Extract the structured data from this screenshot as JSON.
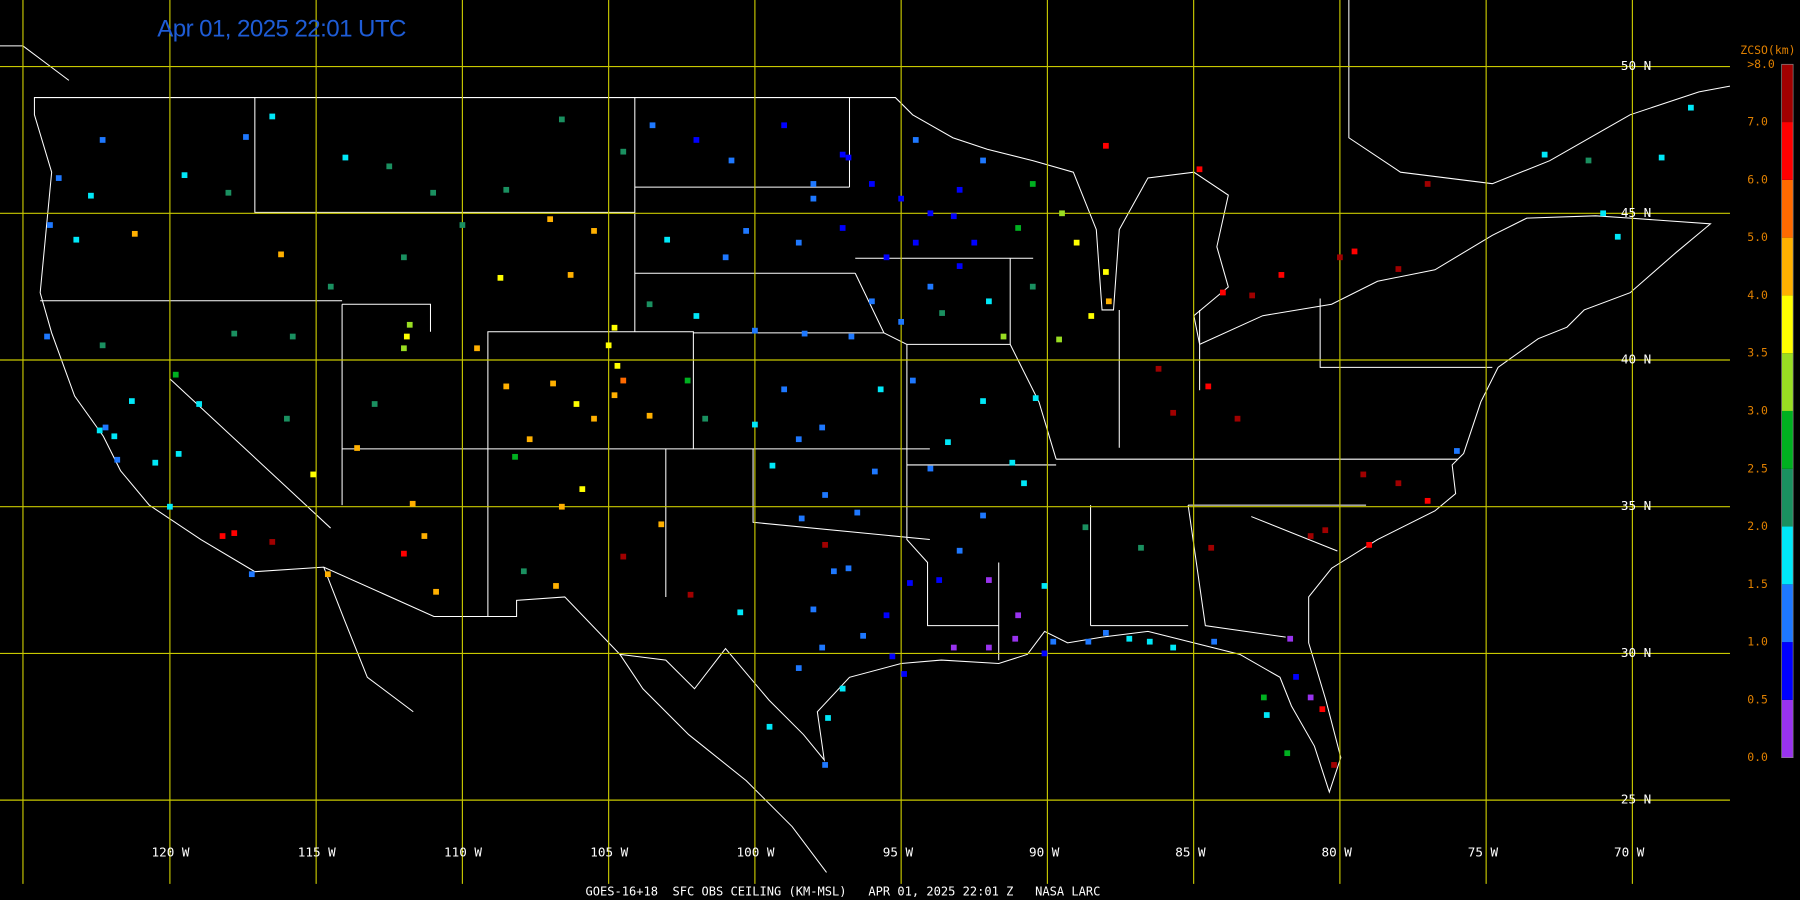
{
  "title": "Apr 01, 2025 22:01 UTC",
  "footer": "GOES-16+18  SFC OBS CEILING (KM-MSL)   APR 01, 2025 22:01 Z   NASA LARC",
  "map": {
    "xticks": [
      {
        "value": -120,
        "label": "120 W"
      },
      {
        "value": -115,
        "label": "115 W"
      },
      {
        "value": -110,
        "label": "110 W"
      },
      {
        "value": -105,
        "label": "105 W"
      },
      {
        "value": -100,
        "label": "100 W"
      },
      {
        "value": -95,
        "label": "95 W"
      },
      {
        "value": -90,
        "label": "90 W"
      },
      {
        "value": -85,
        "label": "85 W"
      },
      {
        "value": -80,
        "label": "80 W"
      },
      {
        "value": -75,
        "label": "75 W"
      },
      {
        "value": -70,
        "label": "70 W"
      }
    ],
    "yticks": [
      {
        "value": 50,
        "label": "50 N"
      },
      {
        "value": 45,
        "label": "45 N"
      },
      {
        "value": 40,
        "label": "40 N"
      },
      {
        "value": 35,
        "label": "35 N"
      },
      {
        "value": 30,
        "label": "30 N"
      },
      {
        "value": 25,
        "label": "25 N"
      }
    ]
  },
  "legend": {
    "title": "ZCSO(km)",
    "ticks": [
      {
        "value": 0,
        "label": "0.0"
      },
      0.5,
      {
        "value": 1,
        "label": "1.0"
      },
      1.5,
      {
        "value": 2,
        "label": "2.0"
      },
      2.5,
      {
        "value": 3,
        "label": "3.0"
      },
      3.5,
      {
        "value": 4,
        "label": "4.0"
      },
      {
        "value": 5,
        "label": "5.0"
      },
      {
        "value": 6,
        "label": "6.0"
      },
      {
        "value": 7,
        "label": "7.0"
      },
      {
        "value": 8,
        "label": ">8.0"
      }
    ],
    "colors": [
      "#9933ee",
      "#0000ff",
      "#1e78ff",
      "#00e8f8",
      "#1a9060",
      "#00b020",
      "#99dd22",
      "#ffff00",
      "#ffb000",
      "#ff6a00",
      "#ff0000",
      "#a00000"
    ]
  },
  "stations": [
    [
      -96,
      46,
      0.8
    ],
    [
      -95,
      45.5,
      0.9
    ],
    [
      -94,
      45,
      0.7
    ],
    [
      -93.2,
      44.9,
      0.8
    ],
    [
      -92.5,
      44,
      0.9
    ],
    [
      -94.5,
      44,
      0.6
    ],
    [
      -95.5,
      43.5,
      0.9
    ],
    [
      -93,
      43.2,
      0.85
    ],
    [
      -94,
      42.5,
      1.2
    ],
    [
      -92,
      42,
      1.8
    ],
    [
      -93.6,
      41.6,
      2.2
    ],
    [
      -95,
      41.3,
      1.3
    ],
    [
      -96,
      42,
      1.1
    ],
    [
      -97,
      44.5,
      0.8
    ],
    [
      -98,
      45.5,
      1.2
    ],
    [
      -97,
      47,
      0.6
    ],
    [
      -96.8,
      46.9,
      0.9
    ],
    [
      -94.5,
      47.5,
      1.1
    ],
    [
      -92.2,
      46.8,
      1.4
    ],
    [
      -90.5,
      46,
      2.8
    ],
    [
      -89.5,
      45,
      3.2
    ],
    [
      -89,
      44,
      3.7
    ],
    [
      -88,
      43,
      3.8
    ],
    [
      -87.9,
      42,
      4.1
    ],
    [
      -88.5,
      41.5,
      3.9
    ],
    [
      -89.6,
      40.7,
      3.1
    ],
    [
      -90.5,
      42.5,
      2.4
    ],
    [
      -91.5,
      40.8,
      3.3
    ],
    [
      -91,
      44.5,
      2.6
    ],
    [
      -93,
      45.8,
      0.7
    ],
    [
      -100.8,
      46.8,
      1.2
    ],
    [
      -102,
      47.5,
      0.9
    ],
    [
      -103.5,
      48,
      1.3
    ],
    [
      -99,
      48,
      0.9
    ],
    [
      -98,
      46,
      1.1
    ],
    [
      -100.3,
      44.4,
      1.4
    ],
    [
      -103,
      44.1,
      1.7
    ],
    [
      -98.5,
      44,
      1.1
    ],
    [
      -101,
      43.5,
      1.3
    ],
    [
      -100,
      41,
      1.4
    ],
    [
      -98.3,
      40.9,
      1.2
    ],
    [
      -96.7,
      40.8,
      1.1
    ],
    [
      -102,
      41.5,
      1.6
    ],
    [
      -103.6,
      41.9,
      2.2
    ],
    [
      -99,
      39,
      1.3
    ],
    [
      -97.7,
      37.7,
      1.4
    ],
    [
      -95.7,
      39,
      1.5
    ],
    [
      -100,
      37.8,
      1.5
    ],
    [
      -101.7,
      38,
      2.1
    ],
    [
      -98.5,
      37.3,
      1.3
    ],
    [
      -94.6,
      39.3,
      1.0
    ],
    [
      -92.2,
      38.6,
      1.5
    ],
    [
      -90.4,
      38.7,
      1.8
    ],
    [
      -93.4,
      37.2,
      1.6
    ],
    [
      -94,
      36.3,
      1.2
    ],
    [
      -92.2,
      34.7,
      1.3
    ],
    [
      -90.8,
      35.8,
      1.7
    ],
    [
      -93,
      33.5,
      1.0
    ],
    [
      -91.2,
      36.5,
      1.5
    ],
    [
      -97.6,
      35.4,
      1.2
    ],
    [
      -95.9,
      36.2,
      1.1
    ],
    [
      -98.4,
      34.6,
      1.4
    ],
    [
      -99.4,
      36.4,
      1.8
    ],
    [
      -96.5,
      34.8,
      1.0
    ],
    [
      -96.8,
      32.9,
      1.0
    ],
    [
      -97.3,
      32.8,
      1.1
    ],
    [
      -95.3,
      29.9,
      0.8
    ],
    [
      -94.9,
      29.3,
      0.9
    ],
    [
      -97.7,
      30.2,
      1.0
    ],
    [
      -98.5,
      29.5,
      1.4
    ],
    [
      -97.5,
      27.8,
      1.7
    ],
    [
      -97.6,
      26.2,
      1.1
    ],
    [
      -99.5,
      27.5,
      1.6
    ],
    [
      -102.2,
      32,
      7.2
    ],
    [
      -100.5,
      31.4,
      1.5
    ],
    [
      -94.7,
      32.4,
      0.9
    ],
    [
      -96.3,
      30.6,
      1.0
    ],
    [
      -95.5,
      31.3,
      0.7
    ],
    [
      -98,
      31.5,
      1.3
    ],
    [
      -97,
      28.8,
      1.6
    ],
    [
      -97.6,
      33.7,
      7.5
    ],
    [
      -93.2,
      30.2,
      0.4
    ],
    [
      -92,
      30.2,
      0.3
    ],
    [
      -91.1,
      30.5,
      0.4
    ],
    [
      -90.1,
      30,
      0.7
    ],
    [
      -93.7,
      32.5,
      0.8
    ],
    [
      -92,
      32.5,
      0.4
    ],
    [
      -91,
      31.3,
      0.3
    ],
    [
      -89.8,
      30.4,
      1.3
    ],
    [
      -90.1,
      32.3,
      1.6
    ],
    [
      -88.6,
      30.4,
      1.4
    ],
    [
      -88,
      30.7,
      1.2
    ],
    [
      -87.2,
      30.5,
      1.5
    ],
    [
      -86.5,
      30.4,
      1.6
    ],
    [
      -85.7,
      30.2,
      1.8
    ],
    [
      -84.3,
      30.4,
      1.4
    ],
    [
      -86.8,
      33.6,
      2.3
    ],
    [
      -88.7,
      34.3,
      2.0
    ],
    [
      -81.7,
      30.5,
      0.4
    ],
    [
      -81.5,
      29.2,
      0.6
    ],
    [
      -81,
      28.5,
      0.4
    ],
    [
      -82.5,
      27.9,
      1.9
    ],
    [
      -82.6,
      28.5,
      2.7
    ],
    [
      -80.2,
      26.2,
      7.5
    ],
    [
      -81.8,
      26.6,
      2.6
    ],
    [
      -80.6,
      28.1,
      6.5
    ],
    [
      -84.4,
      33.6,
      7.5
    ],
    [
      -81,
      34,
      7.4
    ],
    [
      -80.5,
      34.2,
      7.6
    ],
    [
      -79,
      33.7,
      6.8
    ],
    [
      -78,
      35.8,
      7.3
    ],
    [
      -77,
      35.2,
      6.6
    ],
    [
      -76,
      36.9,
      1.3
    ],
    [
      -79.2,
      36.1,
      7.6
    ],
    [
      -83.5,
      38,
      7.2
    ],
    [
      -85.7,
      38.2,
      7.5
    ],
    [
      -86.2,
      39.7,
      7.4
    ],
    [
      -84.5,
      39.1,
      6.9
    ],
    [
      -84,
      42.3,
      6.7
    ],
    [
      -83,
      42.2,
      7.4
    ],
    [
      -82,
      42.9,
      6.5
    ],
    [
      -80,
      43.5,
      7.6
    ],
    [
      -79.5,
      43.7,
      6.7
    ],
    [
      -78,
      43.1,
      7.1
    ],
    [
      -77,
      46,
      7.3
    ],
    [
      -84.8,
      46.5,
      6.2
    ],
    [
      -88,
      47.3,
      6.6
    ],
    [
      -71,
      45,
      1.6
    ],
    [
      -70.5,
      44.2,
      1.5
    ],
    [
      -69,
      46.9,
      1.6
    ],
    [
      -68,
      48.6,
      1.5
    ],
    [
      -73,
      47,
      1.7
    ],
    [
      -71.5,
      46.8,
      2.3
    ],
    [
      -104.7,
      39.8,
      3.6
    ],
    [
      -104.8,
      38.8,
      4.6
    ],
    [
      -105,
      40.5,
      3.6
    ],
    [
      -104.5,
      39.3,
      5.0
    ],
    [
      -106.9,
      39.2,
      4.1
    ],
    [
      -107.7,
      37.3,
      4.4
    ],
    [
      -108.5,
      39.1,
      4.5
    ],
    [
      -106.1,
      38.5,
      3.8
    ],
    [
      -103.6,
      38.1,
      4.3
    ],
    [
      -102.3,
      39.3,
      2.7
    ],
    [
      -105.5,
      38,
      4.0
    ],
    [
      -106.6,
      35,
      4.3
    ],
    [
      -105.9,
      35.6,
      3.7
    ],
    [
      -103.2,
      34.4,
      4.1
    ],
    [
      -104.5,
      33.3,
      7.2
    ],
    [
      -108.2,
      36.7,
      2.6
    ],
    [
      -106.8,
      32.3,
      4.0
    ],
    [
      -107.9,
      32.8,
      2.4
    ],
    [
      -111.7,
      35.1,
      4.7
    ],
    [
      -112,
      33.4,
      6.8
    ],
    [
      -110.9,
      32.1,
      4.1
    ],
    [
      -111.3,
      34,
      4.5
    ],
    [
      -114.6,
      32.7,
      4.2
    ],
    [
      -113.6,
      37,
      4.5
    ],
    [
      -111.9,
      40.8,
      3.6
    ],
    [
      -111.8,
      41.2,
      3.0
    ],
    [
      -112,
      40.4,
      3.4
    ],
    [
      -113,
      38.5,
      2.4
    ],
    [
      -109.5,
      40.4,
      4.1
    ],
    [
      -115.1,
      36.1,
      3.7
    ],
    [
      -119.8,
      39.5,
      2.7
    ],
    [
      -117.8,
      40.9,
      2.4
    ],
    [
      -115.8,
      40.8,
      2.3
    ],
    [
      -116,
      38,
      2.0
    ],
    [
      -122.4,
      37.6,
      1.8
    ],
    [
      -122.2,
      37.7,
      1.4
    ],
    [
      -121.9,
      37.4,
      1.5
    ],
    [
      -121.3,
      38.6,
      1.8
    ],
    [
      -120.5,
      36.5,
      1.6
    ],
    [
      -119.7,
      36.8,
      1.9
    ],
    [
      -118.2,
      34,
      6.3
    ],
    [
      -117.2,
      32.7,
      1.1
    ],
    [
      -116.5,
      33.8,
      7.0
    ],
    [
      -117.8,
      34.1,
      6.6
    ],
    [
      -120,
      35,
      1.9
    ],
    [
      -121.8,
      36.6,
      1.2
    ],
    [
      -124.2,
      40.8,
      1.1
    ],
    [
      -122.3,
      40.5,
      2.3
    ],
    [
      -119,
      38.5,
      1.7
    ],
    [
      -122.3,
      47.5,
      1.3
    ],
    [
      -122.7,
      45.6,
      1.6
    ],
    [
      -123.8,
      46.2,
      1.4
    ],
    [
      -124.1,
      44.6,
      1.2
    ],
    [
      -123.2,
      44.1,
      1.7
    ],
    [
      -117.4,
      47.6,
      1.3
    ],
    [
      -119.5,
      46.3,
      1.6
    ],
    [
      -121.2,
      44.3,
      4.3
    ],
    [
      -118,
      45.7,
      2.3
    ],
    [
      -116.2,
      43.6,
      4.5
    ],
    [
      -112,
      43.5,
      2.4
    ],
    [
      -114.5,
      42.5,
      2.2
    ],
    [
      -116.5,
      48.3,
      1.5
    ],
    [
      -108.5,
      45.8,
      2.4
    ],
    [
      -111,
      45.7,
      2.3
    ],
    [
      -112.5,
      46.6,
      2.2
    ],
    [
      -114,
      46.9,
      1.7
    ],
    [
      -106.6,
      48.2,
      2.2
    ],
    [
      -104.5,
      47.1,
      2.3
    ],
    [
      -106.3,
      42.9,
      4.2
    ],
    [
      -104.8,
      41.1,
      3.5
    ],
    [
      -108.7,
      42.8,
      3.6
    ],
    [
      -110,
      44.6,
      2.4
    ],
    [
      -107,
      44.8,
      4.8
    ],
    [
      -105.5,
      44.4,
      4.6
    ]
  ]
}
